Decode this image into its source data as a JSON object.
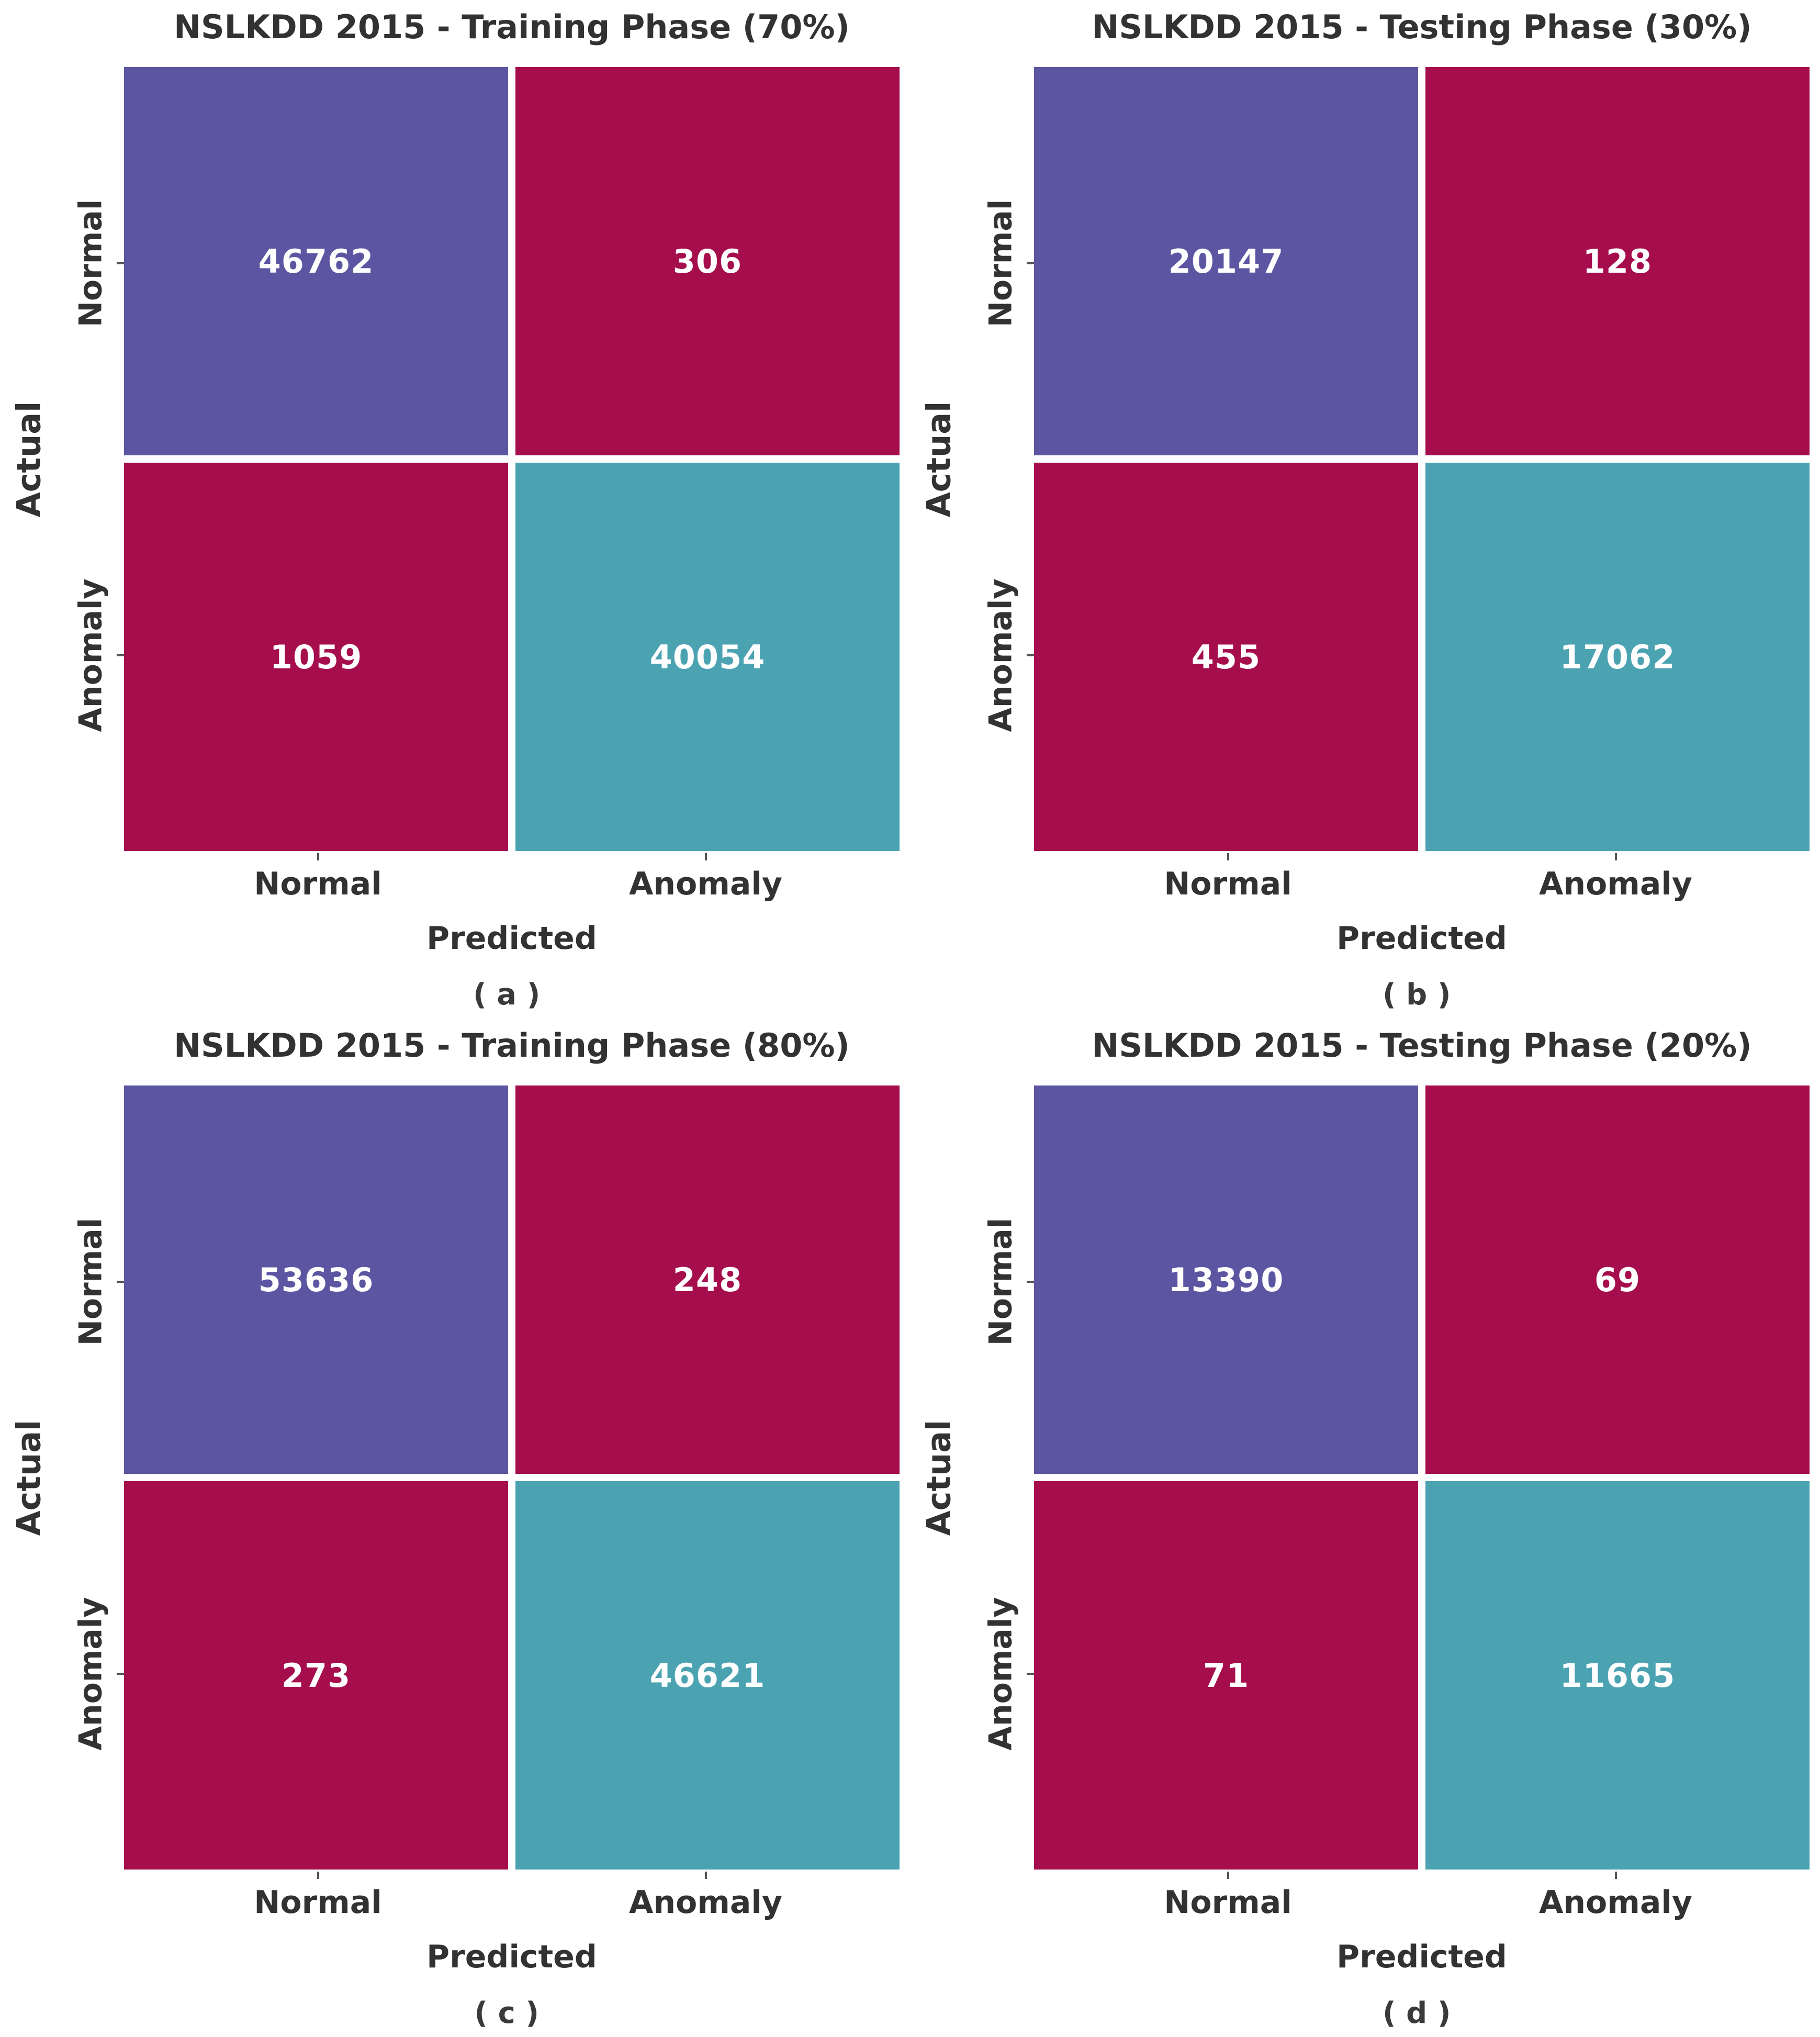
{
  "colors": {
    "purple": "#5C55A1",
    "crimson": "#A50D4D",
    "teal": "#4BA3B2",
    "text": "#323232",
    "cell_text": "#FFFFFF",
    "background": "#FFFFFF"
  },
  "axis": {
    "xlabel": "Predicted",
    "ylabel": "Actual",
    "xticks": [
      "Normal",
      "Anomaly"
    ],
    "yticks": [
      "Normal",
      "Anomaly"
    ]
  },
  "panels": [
    {
      "title": "NSLKDD 2015 - Training Phase (70%)",
      "caption": "(a)",
      "cells": [
        [
          "46762",
          "306"
        ],
        [
          "1059",
          "40054"
        ]
      ]
    },
    {
      "title": "NSLKDD 2015 - Testing Phase (30%)",
      "caption": "(b)",
      "cells": [
        [
          "20147",
          "128"
        ],
        [
          "455",
          "17062"
        ]
      ]
    },
    {
      "title": "NSLKDD 2015 - Training Phase (80%)",
      "caption": "(c)",
      "cells": [
        [
          "53636",
          "248"
        ],
        [
          "273",
          "46621"
        ]
      ]
    },
    {
      "title": "NSLKDD 2015 - Testing Phase (20%)",
      "caption": "(d)",
      "cells": [
        [
          "13390",
          "69"
        ],
        [
          "71",
          "11665"
        ]
      ]
    }
  ],
  "chart_data": [
    {
      "type": "heatmap",
      "title": "NSLKDD 2015 - Training Phase (70%)",
      "caption": "(a)",
      "xlabel": "Predicted",
      "ylabel": "Actual",
      "x_categories": [
        "Normal",
        "Anomaly"
      ],
      "y_categories": [
        "Normal",
        "Anomaly"
      ],
      "values": [
        [
          46762,
          306
        ],
        [
          1059,
          40054
        ]
      ],
      "cell_colors": [
        [
          "#5C55A1",
          "#A50D4D"
        ],
        [
          "#A50D4D",
          "#4BA3B2"
        ]
      ],
      "legend": "none",
      "grid": false
    },
    {
      "type": "heatmap",
      "title": "NSLKDD 2015 - Testing Phase (30%)",
      "caption": "(b)",
      "xlabel": "Predicted",
      "ylabel": "Actual",
      "x_categories": [
        "Normal",
        "Anomaly"
      ],
      "y_categories": [
        "Normal",
        "Anomaly"
      ],
      "values": [
        [
          20147,
          128
        ],
        [
          455,
          17062
        ]
      ],
      "cell_colors": [
        [
          "#5C55A1",
          "#A50D4D"
        ],
        [
          "#A50D4D",
          "#4BA3B2"
        ]
      ],
      "legend": "none",
      "grid": false
    },
    {
      "type": "heatmap",
      "title": "NSLKDD 2015 - Training Phase (80%)",
      "caption": "(c)",
      "xlabel": "Predicted",
      "ylabel": "Actual",
      "x_categories": [
        "Normal",
        "Anomaly"
      ],
      "y_categories": [
        "Normal",
        "Anomaly"
      ],
      "values": [
        [
          53636,
          248
        ],
        [
          273,
          46621
        ]
      ],
      "cell_colors": [
        [
          "#5C55A1",
          "#A50D4D"
        ],
        [
          "#A50D4D",
          "#4BA3B2"
        ]
      ],
      "legend": "none",
      "grid": false
    },
    {
      "type": "heatmap",
      "title": "NSLKDD 2015 - Testing Phase (20%)",
      "caption": "(d)",
      "xlabel": "Predicted",
      "ylabel": "Actual",
      "x_categories": [
        "Normal",
        "Anomaly"
      ],
      "y_categories": [
        "Normal",
        "Anomaly"
      ],
      "values": [
        [
          13390,
          69
        ],
        [
          71,
          11665
        ]
      ],
      "cell_colors": [
        [
          "#5C55A1",
          "#A50D4D"
        ],
        [
          "#A50D4D",
          "#4BA3B2"
        ]
      ],
      "legend": "none",
      "grid": false
    }
  ]
}
